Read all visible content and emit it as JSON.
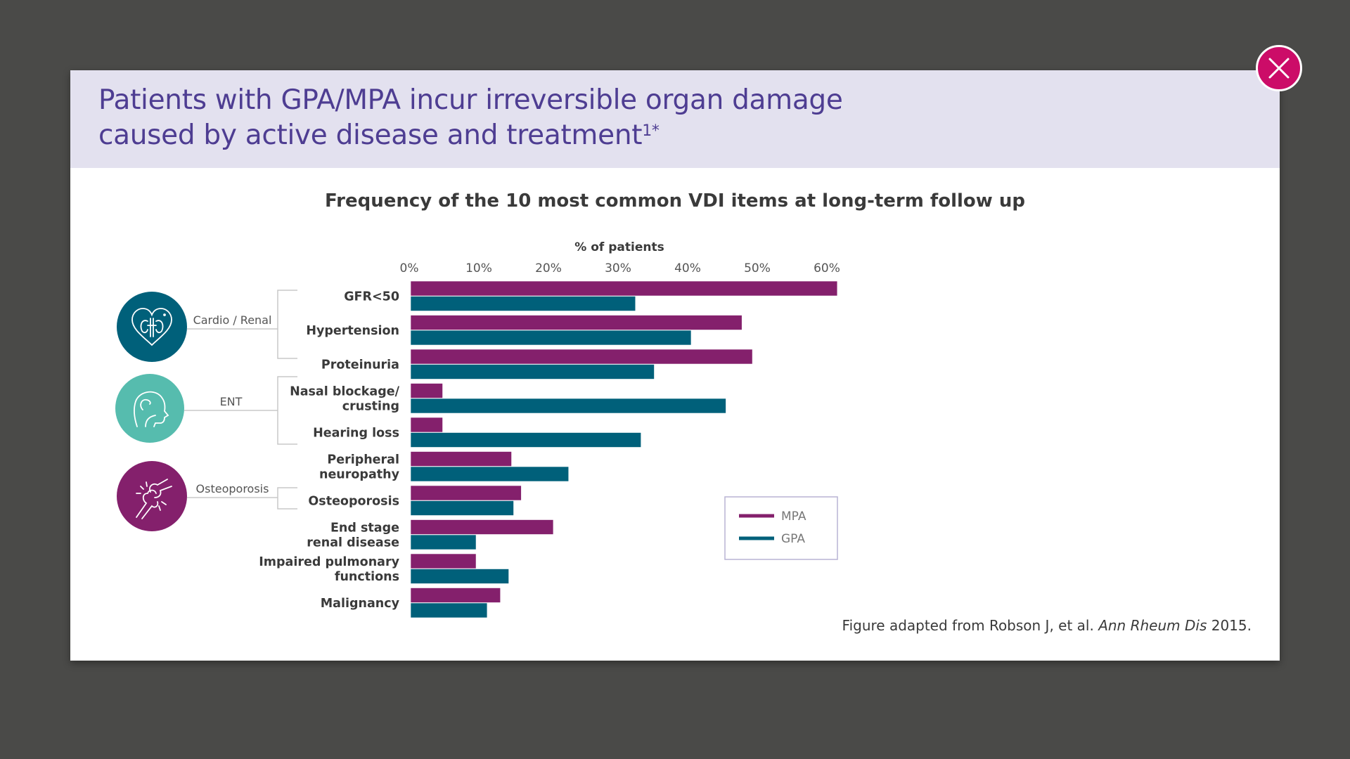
{
  "header": {
    "title_line1": "Patients with GPA/MPA incur irreversible organ damage",
    "title_line2": "caused by active disease and treatment",
    "title_superscript": "1*"
  },
  "close_button": {
    "icon": "close-icon",
    "label": "Close"
  },
  "groups": [
    {
      "label": "Cardio / Renal",
      "icon": "heart-kidney-icon",
      "color": "#00607a",
      "items": [
        "GFR<50",
        "Hypertension",
        "Proteinuria"
      ]
    },
    {
      "label": "ENT",
      "icon": "head-profile-icon",
      "color": "#56bcae",
      "items": [
        "Nasal blockage/ crusting",
        "Hearing loss"
      ]
    },
    {
      "label": "Osteoporosis",
      "icon": "bone-joint-icon",
      "color": "#84206c",
      "items": [
        "Osteoporosis"
      ]
    }
  ],
  "colors": {
    "MPA": "#84206c",
    "GPA": "#00607a",
    "title": "#4e3d92",
    "close": "#cc0c68",
    "header_bg": "#e3e1ef"
  },
  "chart_data": {
    "type": "bar",
    "orientation": "horizontal",
    "title": "Frequency of the 10 most common VDI items at long-term follow up",
    "xlabel": "% of patients",
    "ylabel": "",
    "xlim": [
      0,
      60
    ],
    "xticks": [
      0,
      10,
      20,
      30,
      40,
      50,
      60
    ],
    "xtick_labels": [
      "0%",
      "10%",
      "20%",
      "30%",
      "40%",
      "50%",
      "60%"
    ],
    "categories": [
      [
        "GFR<50"
      ],
      [
        "Hypertension"
      ],
      [
        "Proteinuria"
      ],
      [
        "Nasal blockage/",
        "crusting"
      ],
      [
        "Hearing loss"
      ],
      [
        "Peripheral",
        "neuropathy"
      ],
      [
        "Osteoporosis"
      ],
      [
        "End stage",
        "renal disease"
      ],
      [
        "Impaired pulmonary",
        "functions"
      ],
      [
        "Malignancy"
      ]
    ],
    "series": [
      {
        "name": "MPA",
        "color": "#84206c",
        "values": [
          61.3,
          47.6,
          49.1,
          4.6,
          4.6,
          14.5,
          15.9,
          20.5,
          9.4,
          12.9
        ]
      },
      {
        "name": "GPA",
        "color": "#00607a",
        "values": [
          32.3,
          40.3,
          35.0,
          45.3,
          33.1,
          22.7,
          14.8,
          9.4,
          14.1,
          11.0
        ]
      }
    ],
    "legend": {
      "position": "bottom-right",
      "entries": [
        "MPA",
        "GPA"
      ]
    },
    "grid": false
  },
  "source": {
    "prefix": "Figure adapted from Robson J, et al. ",
    "journal": "Ann Rheum Dis",
    "suffix": " 2015."
  }
}
